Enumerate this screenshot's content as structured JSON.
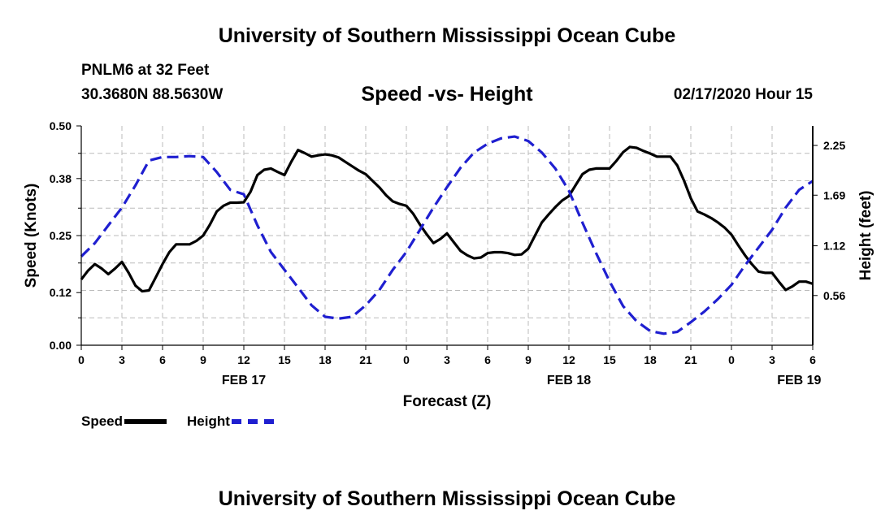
{
  "header": {
    "org_title": "University of Southern Mississippi Ocean Cube",
    "station": "PNLM6 at 32 Feet",
    "coords": "30.3680N 88.5630W",
    "subtitle": "Speed -vs- Height",
    "datetime": "02/17/2020 Hour 15"
  },
  "footer": {
    "org_title": "University of Southern Mississippi Ocean Cube"
  },
  "legend": {
    "speed_label": "Speed",
    "height_label": "Height"
  },
  "colors": {
    "speed": "#000000",
    "height": "#1f1fd0",
    "grid": "#bbbbbb"
  },
  "chart_data": {
    "type": "line",
    "title": "Speed -vs- Height",
    "xlabel": "Forecast (Z)",
    "ylabel": "Speed (Knots)",
    "y2label": "Height (feet)",
    "x_unit": "hours from 00Z Feb 17",
    "xlim": [
      0,
      54
    ],
    "ylim": [
      0,
      0.5
    ],
    "y2lim": [
      0.0,
      2.47
    ],
    "x_ticks": [
      0,
      3,
      6,
      9,
      12,
      15,
      18,
      21,
      24,
      27,
      30,
      33,
      36,
      39,
      42,
      45,
      48,
      51,
      54
    ],
    "x_tick_labels": [
      "0",
      "3",
      "6",
      "9",
      "12",
      "15",
      "18",
      "21",
      "0",
      "3",
      "6",
      "9",
      "12",
      "15",
      "18",
      "21",
      "0",
      "3",
      "6"
    ],
    "date_labels": [
      {
        "x": 12,
        "label": "FEB 17"
      },
      {
        "x": 36,
        "label": "FEB 18"
      },
      {
        "x": 53,
        "label": "FEB 19"
      }
    ],
    "y_ticks": [
      0.0,
      0.12,
      0.25,
      0.38,
      0.5
    ],
    "y_tick_labels": [
      "0.00",
      "0.12",
      "0.25",
      "0.38",
      "0.50"
    ],
    "y2_ticks": [
      0.56,
      1.12,
      1.69,
      2.25
    ],
    "y2_tick_labels": [
      "0.56",
      "1.12",
      "1.69",
      "2.25"
    ],
    "grid": true,
    "series": [
      {
        "name": "Speed",
        "axis": "left",
        "style": "solid",
        "x": [
          0,
          0.5,
          1,
          1.5,
          2,
          2.5,
          3,
          3.5,
          4,
          4.5,
          5,
          5.5,
          6,
          6.5,
          7,
          7.5,
          8,
          8.5,
          9,
          9.5,
          10,
          10.5,
          11,
          11.5,
          12,
          12.5,
          13,
          13.5,
          14,
          14.5,
          15,
          15.5,
          16,
          16.5,
          17,
          17.5,
          18,
          18.5,
          19,
          19.5,
          20,
          20.5,
          21,
          21.5,
          22,
          22.5,
          23,
          23.5,
          24,
          24.5,
          25,
          25.5,
          26,
          26.5,
          27,
          27.5,
          28,
          28.5,
          29,
          29.5,
          30,
          30.5,
          31,
          31.5,
          32,
          32.5,
          33,
          33.5,
          34,
          34.5,
          35,
          35.5,
          36,
          36.5,
          37,
          37.5,
          38,
          38.5,
          39,
          39.5,
          40,
          40.5,
          41,
          41.5,
          42,
          42.5,
          43,
          43.5,
          44,
          44.5,
          45,
          45.5,
          46,
          46.5,
          47,
          47.5,
          48,
          48.5,
          49,
          49.5,
          50,
          50.5,
          51,
          51.5,
          52,
          52.5,
          53,
          53.5,
          54
        ],
        "values": [
          0.15,
          0.17,
          0.185,
          0.175,
          0.162,
          0.175,
          0.19,
          0.165,
          0.136,
          0.123,
          0.125,
          0.155,
          0.185,
          0.212,
          0.23,
          0.23,
          0.23,
          0.238,
          0.25,
          0.275,
          0.305,
          0.318,
          0.325,
          0.325,
          0.326,
          0.35,
          0.388,
          0.4,
          0.403,
          0.395,
          0.388,
          0.418,
          0.445,
          0.438,
          0.43,
          0.433,
          0.435,
          0.433,
          0.428,
          0.418,
          0.408,
          0.398,
          0.39,
          0.375,
          0.36,
          0.342,
          0.328,
          0.322,
          0.318,
          0.3,
          0.275,
          0.253,
          0.233,
          0.242,
          0.255,
          0.235,
          0.215,
          0.205,
          0.198,
          0.2,
          0.21,
          0.212,
          0.212,
          0.21,
          0.206,
          0.207,
          0.22,
          0.25,
          0.28,
          0.298,
          0.315,
          0.33,
          0.34,
          0.365,
          0.39,
          0.4,
          0.403,
          0.403,
          0.403,
          0.42,
          0.44,
          0.452,
          0.45,
          0.443,
          0.437,
          0.43,
          0.43,
          0.43,
          0.41,
          0.375,
          0.335,
          0.305,
          0.298,
          0.29,
          0.28,
          0.268,
          0.252,
          0.228,
          0.205,
          0.185,
          0.168,
          0.165,
          0.165,
          0.145,
          0.126,
          0.134,
          0.145,
          0.145,
          0.14
        ]
      },
      {
        "name": "Height",
        "axis": "right",
        "style": "dashed",
        "x": [
          0,
          1,
          2,
          3,
          4,
          5,
          6,
          7,
          8,
          9,
          10,
          11,
          12,
          13,
          14,
          15,
          16,
          17,
          18,
          19,
          20,
          21,
          22,
          23,
          24,
          25,
          26,
          27,
          28,
          29,
          30,
          31,
          32,
          33,
          34,
          35,
          36,
          37,
          38,
          39,
          40,
          41,
          42,
          43,
          44,
          45,
          46,
          47,
          48,
          49,
          50,
          51,
          52,
          53,
          54
        ],
        "values": [
          1.0,
          1.15,
          1.35,
          1.55,
          1.8,
          2.08,
          2.12,
          2.12,
          2.13,
          2.12,
          1.95,
          1.75,
          1.7,
          1.35,
          1.05,
          0.85,
          0.65,
          0.45,
          0.32,
          0.3,
          0.32,
          0.45,
          0.62,
          0.85,
          1.05,
          1.3,
          1.55,
          1.78,
          2.0,
          2.17,
          2.27,
          2.33,
          2.35,
          2.3,
          2.17,
          1.99,
          1.74,
          1.38,
          1.04,
          0.72,
          0.44,
          0.27,
          0.16,
          0.13,
          0.15,
          0.26,
          0.38,
          0.52,
          0.68,
          0.9,
          1.1,
          1.3,
          1.55,
          1.75,
          1.85
        ]
      }
    ]
  }
}
